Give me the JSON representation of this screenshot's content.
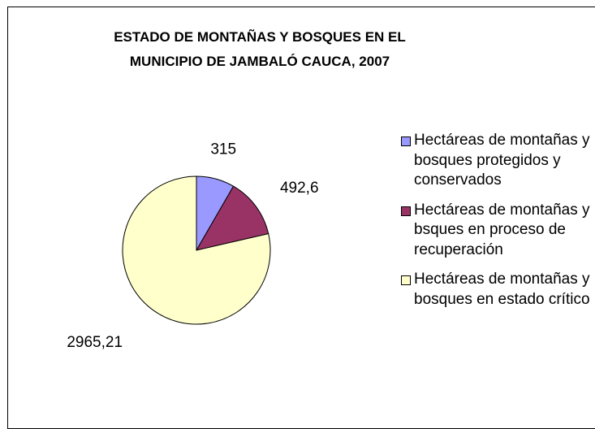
{
  "chart_data": {
    "type": "pie",
    "title": "ESTADO DE MONTAÑAS Y BOSQUES EN EL MUNICIPIO DE JAMBALÓ CAUCA, 2007",
    "categories": [
      "Hectáreas de montañas y bosques protegidos y conservados",
      "Hectáreas de montañas y bsques en proceso de recuperación",
      "Hectáreas de montañas y bosques en estado crítico"
    ],
    "values": [
      315,
      492.6,
      2965.21
    ],
    "value_labels": [
      "315",
      "492,6",
      "2965,21"
    ],
    "colors": [
      "#9999ff",
      "#993366",
      "#ffffcc"
    ],
    "legend": "right"
  }
}
